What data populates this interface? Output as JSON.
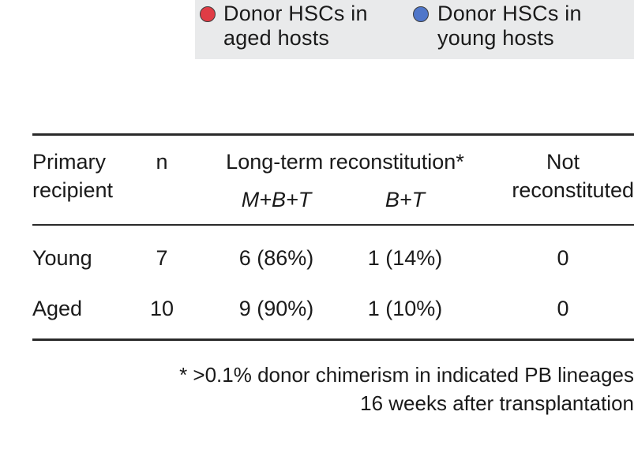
{
  "legend": {
    "items": [
      {
        "line1": "Donor HSCs in",
        "line2": "aged hosts",
        "color": "#e03c45"
      },
      {
        "line1": "Donor HSCs in",
        "line2": "young hosts",
        "color": "#4f76c9"
      }
    ]
  },
  "table": {
    "headers": {
      "recipient_line1": "Primary",
      "recipient_line2": "recipient",
      "n": "n",
      "long_term": "Long-term reconstitution*",
      "mbt": "M+B+T",
      "bt": "B+T",
      "not_line1": "Not",
      "not_line2": "reconstituted"
    },
    "rows": [
      {
        "recipient": "Young",
        "n": "7",
        "mbt": "6 (86%)",
        "bt": "1 (14%)",
        "not": "0"
      },
      {
        "recipient": "Aged",
        "n": "10",
        "mbt": "9 (90%)",
        "bt": "1 (10%)",
        "not": "0"
      }
    ]
  },
  "footnote": {
    "line1": "* >0.1% donor chimerism in indicated PB lineages",
    "line2": "16 weeks after transplantation"
  }
}
